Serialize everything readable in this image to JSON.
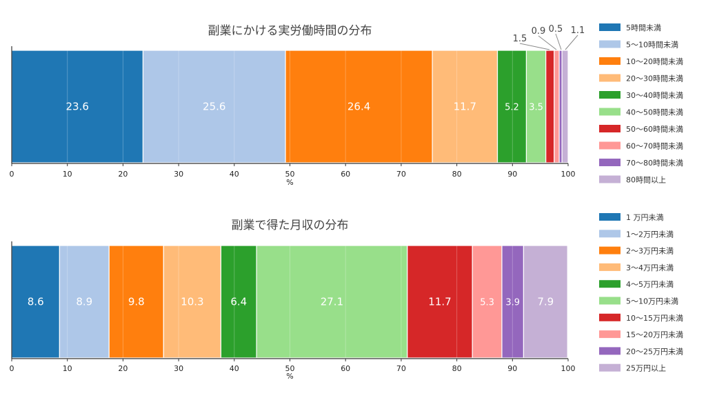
{
  "chart_data": [
    {
      "type": "bar",
      "orientation": "horizontal-stacked",
      "title": "副業にかける実労働時間の分布",
      "xlabel": "%",
      "xlim": [
        0,
        100
      ],
      "xticks": [
        0,
        10,
        20,
        30,
        40,
        50,
        60,
        70,
        80,
        90,
        100
      ],
      "grid": true,
      "legend_position": "right",
      "series": [
        {
          "name": "5時間未満",
          "value": 23.6,
          "label": "23.6",
          "color": "#1f77b4"
        },
        {
          "name": "5～10時間未満",
          "value": 25.6,
          "label": "25.6",
          "color": "#aec7e8"
        },
        {
          "name": "10～20時間未満",
          "value": 26.4,
          "label": "26.4",
          "color": "#ff7f0e"
        },
        {
          "name": "20～30時間未満",
          "value": 11.7,
          "label": "11.7",
          "color": "#ffbb78"
        },
        {
          "name": "30～40時間未満",
          "value": 5.2,
          "label": "5.2",
          "color": "#2ca02c"
        },
        {
          "name": "40～50時間未満",
          "value": 3.5,
          "label": "3.5",
          "color": "#98df8a"
        },
        {
          "name": "50～60時間未満",
          "value": 1.5,
          "label": "1.5",
          "color": "#d62728"
        },
        {
          "name": "60～70時間未満",
          "value": 0.9,
          "label": "0.9",
          "color": "#ff9896"
        },
        {
          "name": "70～80時間未満",
          "value": 0.5,
          "label": "0.5",
          "color": "#9467bd"
        },
        {
          "name": "80時間以上",
          "value": 1.1,
          "label": "1.1",
          "color": "#c5b0d5"
        }
      ]
    },
    {
      "type": "bar",
      "orientation": "horizontal-stacked",
      "title": "副業で得た月収の分布",
      "xlabel": "%",
      "xlim": [
        0,
        100
      ],
      "xticks": [
        0,
        10,
        20,
        30,
        40,
        50,
        60,
        70,
        80,
        90,
        100
      ],
      "grid": true,
      "legend_position": "right",
      "series": [
        {
          "name": "1 万円未満",
          "value": 8.6,
          "label": "8.6",
          "color": "#1f77b4"
        },
        {
          "name": "1～2万円未満",
          "value": 8.9,
          "label": "8.9",
          "color": "#aec7e8"
        },
        {
          "name": "2～3万円未満",
          "value": 9.8,
          "label": "9.8",
          "color": "#ff7f0e"
        },
        {
          "name": "3～4万円未満",
          "value": 10.3,
          "label": "10.3",
          "color": "#ffbb78"
        },
        {
          "name": "4～5万円未満",
          "value": 6.4,
          "label": "6.4",
          "color": "#2ca02c"
        },
        {
          "name": "5～10万円未満",
          "value": 27.1,
          "label": "27.1",
          "color": "#98df8a"
        },
        {
          "name": "10～15万円未満",
          "value": 11.7,
          "label": "11.7",
          "color": "#d62728"
        },
        {
          "name": "15～20万円未満",
          "value": 5.3,
          "label": "5.3",
          "color": "#ff9896"
        },
        {
          "name": "20～25万円未満",
          "value": 3.9,
          "label": "3.9",
          "color": "#9467bd"
        },
        {
          "name": "25万円以上",
          "value": 7.9,
          "label": "7.9",
          "color": "#c5b0d5"
        }
      ]
    }
  ]
}
